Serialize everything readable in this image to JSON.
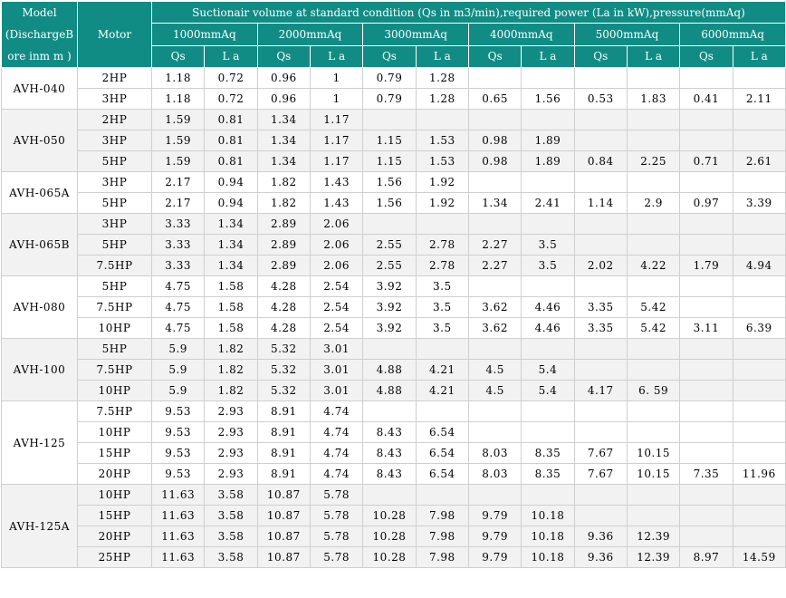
{
  "header": {
    "model_label": "Model",
    "model_sub": "(DischargeB ore inm m )",
    "motor_label": "Motor",
    "title": "Suctionair volume at standard condition (Qs in m3/min),required power (La in kW),pressure(mmAq)",
    "pressures": [
      "1000mmAq",
      "2000mmAq",
      "3000mmAq",
      "4000mmAq",
      "5000mmAq",
      "6000mmAq"
    ],
    "sub_headers": [
      "Qs",
      "L a"
    ]
  },
  "models": [
    {
      "model": "AVH-040",
      "rows": [
        {
          "motor": "2HP",
          "values": [
            "1.18",
            "0.72",
            "0.96",
            "1",
            "0.79",
            "1.28",
            "",
            "",
            "",
            "",
            "",
            ""
          ]
        },
        {
          "motor": "3HP",
          "values": [
            "1.18",
            "0.72",
            "0.96",
            "1",
            "0.79",
            "1.28",
            "0.65",
            "1.56",
            "0.53",
            "1.83",
            "0.41",
            "2.11"
          ]
        }
      ]
    },
    {
      "model": "AVH-050",
      "rows": [
        {
          "motor": "2HP",
          "values": [
            "1.59",
            "0.81",
            "1.34",
            "1.17",
            "",
            "",
            "",
            "",
            "",
            "",
            "",
            ""
          ]
        },
        {
          "motor": "3HP",
          "values": [
            "1.59",
            "0.81",
            "1.34",
            "1.17",
            "1.15",
            "1.53",
            "0.98",
            "1.89",
            "",
            "",
            "",
            ""
          ]
        },
        {
          "motor": "5HP",
          "values": [
            "1.59",
            "0.81",
            "1.34",
            "1.17",
            "1.15",
            "1.53",
            "0.98",
            "1.89",
            "0.84",
            "2.25",
            "0.71",
            "2.61"
          ]
        }
      ]
    },
    {
      "model": "AVH-065A",
      "rows": [
        {
          "motor": "3HP",
          "values": [
            "2.17",
            "0.94",
            "1.82",
            "1.43",
            "1.56",
            "1.92",
            "",
            "",
            "",
            "",
            "",
            ""
          ]
        },
        {
          "motor": "5HP",
          "values": [
            "2.17",
            "0.94",
            "1.82",
            "1.43",
            "1.56",
            "1.92",
            "1.34",
            "2.41",
            "1.14",
            "2.9",
            "0.97",
            "3.39"
          ]
        }
      ]
    },
    {
      "model": "AVH-065B",
      "rows": [
        {
          "motor": "3HP",
          "values": [
            "3.33",
            "1.34",
            "2.89",
            "2.06",
            "",
            "",
            "",
            "",
            "",
            "",
            "",
            ""
          ]
        },
        {
          "motor": "5HP",
          "values": [
            "3.33",
            "1.34",
            "2.89",
            "2.06",
            "2.55",
            "2.78",
            "2.27",
            "3.5",
            "",
            "",
            "",
            ""
          ]
        },
        {
          "motor": "7.5HP",
          "values": [
            "3.33",
            "1.34",
            "2.89",
            "2.06",
            "2.55",
            "2.78",
            "2.27",
            "3.5",
            "2.02",
            "4.22",
            "1.79",
            "4.94"
          ]
        }
      ]
    },
    {
      "model": "AVH-080",
      "rows": [
        {
          "motor": "5HP",
          "values": [
            "4.75",
            "1.58",
            "4.28",
            "2.54",
            "3.92",
            "3.5",
            "",
            "",
            "",
            "",
            "",
            ""
          ]
        },
        {
          "motor": "7.5HP",
          "values": [
            "4.75",
            "1.58",
            "4.28",
            "2.54",
            "3.92",
            "3.5",
            "3.62",
            "4.46",
            "3.35",
            "5.42",
            "",
            ""
          ]
        },
        {
          "motor": "10HP",
          "values": [
            "4.75",
            "1.58",
            "4.28",
            "2.54",
            "3.92",
            "3.5",
            "3.62",
            "4.46",
            "3.35",
            "5.42",
            "3.11",
            "6.39"
          ]
        }
      ]
    },
    {
      "model": "AVH-100",
      "rows": [
        {
          "motor": "5HP",
          "values": [
            "5.9",
            "1.82",
            "5.32",
            "3.01",
            "",
            "",
            "",
            "",
            "",
            "",
            "",
            ""
          ]
        },
        {
          "motor": "7.5HP",
          "values": [
            "5.9",
            "1.82",
            "5.32",
            "3.01",
            "4.88",
            "4.21",
            "4.5",
            "5.4",
            "",
            "",
            "",
            ""
          ]
        },
        {
          "motor": "10HP",
          "values": [
            "5.9",
            "1.82",
            "5.32",
            "3.01",
            "4.88",
            "4.21",
            "4.5",
            "5.4",
            "4.17",
            "6. 59",
            "",
            ""
          ]
        }
      ]
    },
    {
      "model": "AVH-125",
      "rows": [
        {
          "motor": "7.5HP",
          "values": [
            "9.53",
            "2.93",
            "8.91",
            "4.74",
            "",
            "",
            "",
            "",
            "",
            "",
            "",
            ""
          ]
        },
        {
          "motor": "10HP",
          "values": [
            "9.53",
            "2.93",
            "8.91",
            "4.74",
            "8.43",
            "6.54",
            "",
            "",
            "",
            "",
            "",
            ""
          ]
        },
        {
          "motor": "15HP",
          "values": [
            "9.53",
            "2.93",
            "8.91",
            "4.74",
            "8.43",
            "6.54",
            "8.03",
            "8.35",
            "7.67",
            "10.15",
            "",
            ""
          ]
        },
        {
          "motor": "20HP",
          "values": [
            "9.53",
            "2.93",
            "8.91",
            "4.74",
            "8.43",
            "6.54",
            "8.03",
            "8.35",
            "7.67",
            "10.15",
            "7.35",
            "11.96"
          ]
        }
      ]
    },
    {
      "model": "AVH-125A",
      "rows": [
        {
          "motor": "10HP",
          "values": [
            "11.63",
            "3.58",
            "10.87",
            "5.78",
            "",
            "",
            "",
            "",
            "",
            "",
            "",
            ""
          ]
        },
        {
          "motor": "15HP",
          "values": [
            "11.63",
            "3.58",
            "10.87",
            "5.78",
            "10.28",
            "7.98",
            "9.79",
            "10.18",
            "",
            "",
            "",
            ""
          ]
        },
        {
          "motor": "20HP",
          "values": [
            "11.63",
            "3.58",
            "10.87",
            "5.78",
            "10.28",
            "7.98",
            "9.79",
            "10.18",
            "9.36",
            "12.39",
            "",
            ""
          ]
        },
        {
          "motor": "25HP",
          "values": [
            "11.63",
            "3.58",
            "10.87",
            "5.78",
            "10.28",
            "7.98",
            "9.79",
            "10.18",
            "9.36",
            "12.39",
            "8.97",
            "14.59"
          ]
        }
      ]
    }
  ]
}
